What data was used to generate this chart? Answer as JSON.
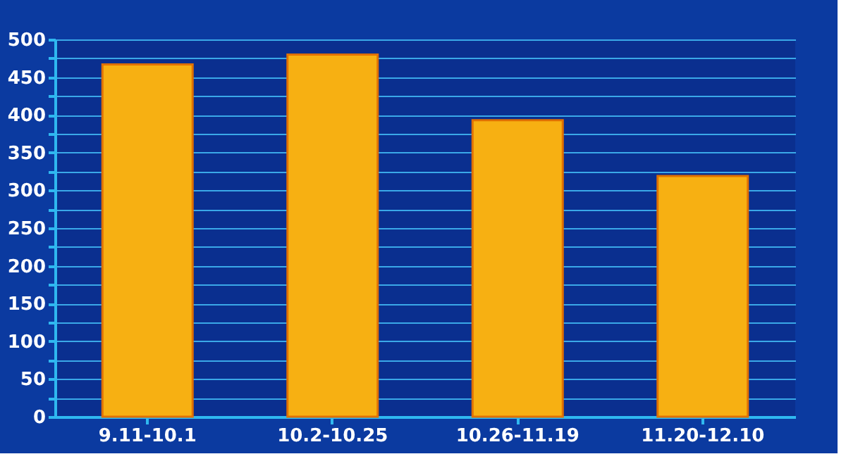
{
  "chart_data": {
    "type": "bar",
    "categories": [
      "9.11-10.1",
      "10.2-10.25",
      "10.26-11.19",
      "11.20-12.10"
    ],
    "series": [
      {
        "color": "#f7b012",
        "values": [
          467,
          480,
          393,
          319
        ]
      }
    ],
    "ylim": [
      0,
      500
    ],
    "yticks": [
      0,
      {
        "value": 25,
        "label": null
      },
      50,
      {
        "value": 75,
        "label": null
      },
      100,
      {
        "value": 125,
        "label": null
      },
      150,
      {
        "value": 175,
        "label": null
      },
      200,
      {
        "value": 225,
        "label": null
      },
      250,
      {
        "value": 275,
        "label": null
      },
      300,
      {
        "value": 325,
        "label": null
      },
      350,
      {
        "value": 375,
        "label": null
      },
      400,
      {
        "value": 425,
        "label": null
      },
      450,
      {
        "value": 475,
        "label": null
      },
      500
    ],
    "grid": "y"
  }
}
